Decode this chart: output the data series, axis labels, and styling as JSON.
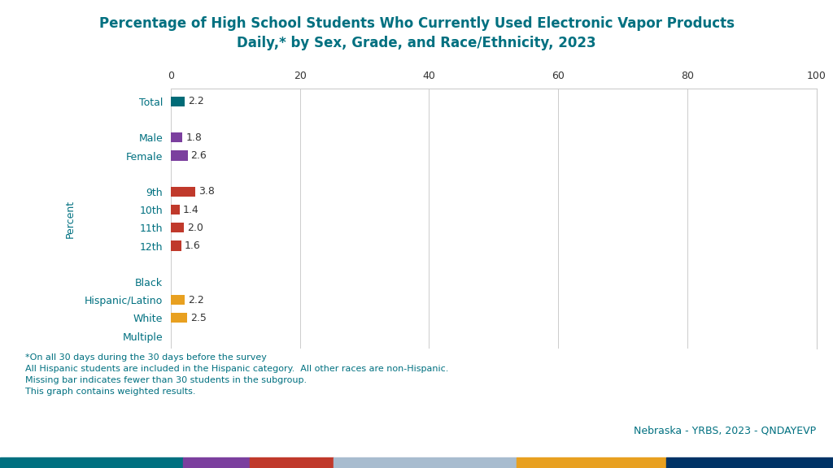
{
  "title": "Percentage of High School Students Who Currently Used Electronic Vapor Products\nDaily,* by Sex, Grade, and Race/Ethnicity, 2023",
  "title_color": "#007080",
  "categories": [
    "Total",
    "",
    "Male",
    "Female",
    "",
    "9th",
    "10th",
    "11th",
    "12th",
    "",
    "Black",
    "Hispanic/Latino",
    "White",
    "Multiple"
  ],
  "values": [
    2.2,
    null,
    1.8,
    2.6,
    null,
    3.8,
    1.4,
    2.0,
    1.6,
    null,
    null,
    2.2,
    2.5,
    null
  ],
  "bar_colors": [
    "#006B77",
    null,
    "#7B3F9E",
    "#7B3F9E",
    null,
    "#C0392B",
    "#C0392B",
    "#C0392B",
    "#C0392B",
    null,
    null,
    "#E8A020",
    "#E8A020",
    null
  ],
  "xlim": [
    0,
    100
  ],
  "xticks": [
    0,
    20,
    40,
    60,
    80,
    100
  ],
  "ylabel": "Percent",
  "footnotes": [
    "*On all 30 days during the 30 days before the survey",
    "All Hispanic students are included in the Hispanic category.  All other races are non-Hispanic.",
    "Missing bar indicates fewer than 30 students in the subgroup.",
    "This graph contains weighted results."
  ],
  "footer_text": "Nebraska - YRBS, 2023 - QNDAYEVP",
  "footer_colors": [
    "#007080",
    "#7B3F9E",
    "#C0392B",
    "#A8BCCF",
    "#E8A020",
    "#003366"
  ],
  "footer_color_widths": [
    0.22,
    0.08,
    0.1,
    0.22,
    0.18,
    0.2
  ],
  "background_color": "#ffffff",
  "grid_color": "#cccccc",
  "bar_height": 0.55,
  "label_color": "#007080",
  "value_color": "#333333",
  "footnote_color": "#007080",
  "footer_text_color": "#007080",
  "yticklabel_fontsize": 9,
  "xticklabel_fontsize": 9,
  "value_fontsize": 9,
  "ylabel_fontsize": 9,
  "title_fontsize": 12,
  "footnote_fontsize": 8
}
